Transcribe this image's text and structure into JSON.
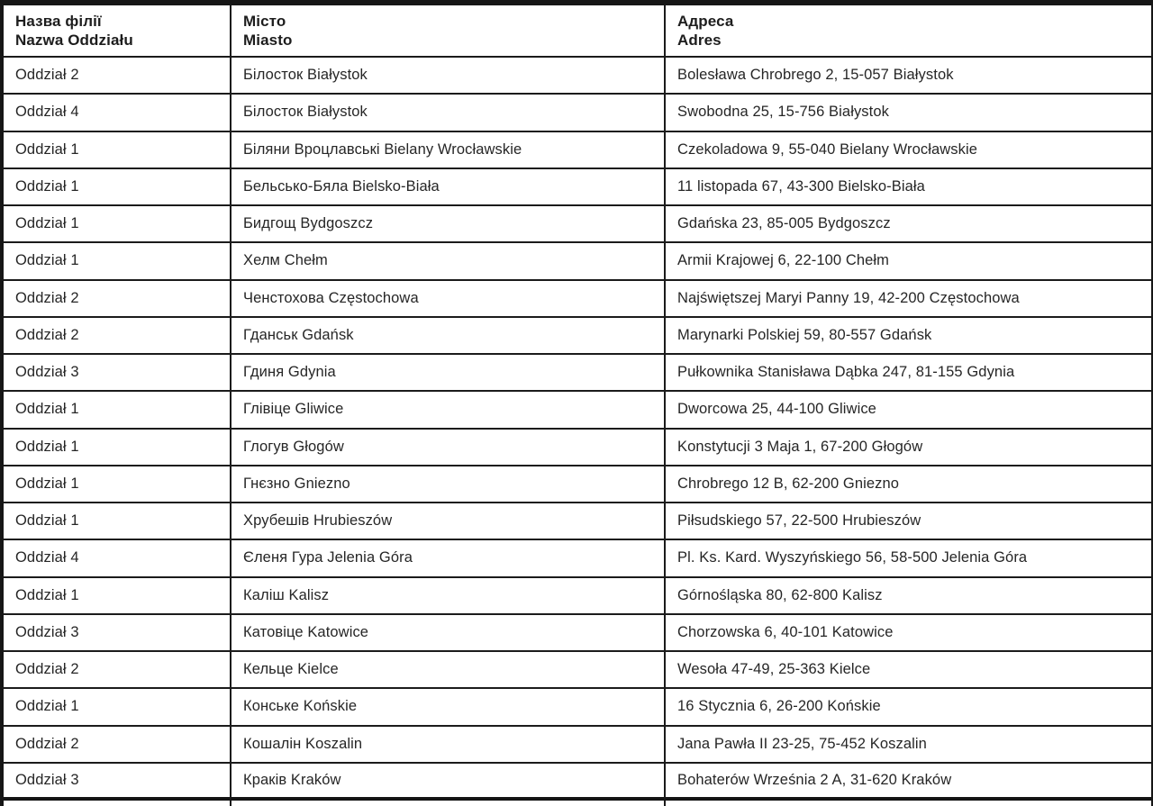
{
  "table": {
    "columns": [
      {
        "label_uk": "Назва філії",
        "label_pl": "Nazwa Oddziału"
      },
      {
        "label_uk": "Місто",
        "label_pl": "Miasto"
      },
      {
        "label_uk": "Адреса",
        "label_pl": "Adres"
      }
    ],
    "rows": [
      {
        "branch": "Oddział 2",
        "city": "Білосток Białystok",
        "address": "Bolesława Chrobrego 2, 15-057 Białystok"
      },
      {
        "branch": "Oddział 4",
        "city": "Білосток Białystok",
        "address": "Swobodna 25, 15-756 Białystok"
      },
      {
        "branch": "Oddział 1",
        "city": "Біляни Вроцлавські Bielany Wrocławskie",
        "address": "Czekoladowa 9, 55-040 Bielany Wrocławskie"
      },
      {
        "branch": "Oddział 1",
        "city": "Бельсько-Бяла Bielsko-Biała",
        "address": "11 listopada 67, 43-300 Bielsko-Biała"
      },
      {
        "branch": "Oddział 1",
        "city": "Бидгощ Bydgoszcz",
        "address": "Gdańska 23, 85-005 Bydgoszcz"
      },
      {
        "branch": "Oddział 1",
        "city": "Хелм Chełm",
        "address": "Armii Krajowej 6, 22-100 Chełm"
      },
      {
        "branch": "Oddział 2",
        "city": "Ченстохова Częstochowa",
        "address": "Najświętszej Maryi Panny 19, 42-200 Częstochowa"
      },
      {
        "branch": "Oddział 2",
        "city": "Гданськ Gdańsk",
        "address": "Marynarki Polskiej 59, 80-557 Gdańsk"
      },
      {
        "branch": "Oddział 3",
        "city": "Гдиня Gdynia",
        "address": "Pułkownika Stanisława Dąbka 247, 81-155 Gdynia"
      },
      {
        "branch": "Oddział 1",
        "city": "Глівіце Gliwice",
        "address": "Dworcowa 25, 44-100 Gliwice"
      },
      {
        "branch": "Oddział 1",
        "city": "Глогув Głogów",
        "address": "Konstytucji 3 Maja 1, 67-200 Głogów"
      },
      {
        "branch": "Oddział 1",
        "city": "Гнєзно Gniezno",
        "address": "Chrobrego 12 B, 62-200 Gniezno"
      },
      {
        "branch": "Oddział 1",
        "city": "Хрубешів Hrubieszów",
        "address": "Piłsudskiego 57, 22-500 Hrubieszów"
      },
      {
        "branch": "Oddział 4",
        "city": "Єленя Гура Jelenia Góra",
        "address": "Pl. Ks. Kard. Wyszyńskiego 56, 58-500 Jelenia Góra"
      },
      {
        "branch": "Oddział 1",
        "city": "Каліш Kalisz",
        "address": "Górnośląska 80, 62-800 Kalisz"
      },
      {
        "branch": "Oddział 3",
        "city": "Катовіце Katowice",
        "address": "Chorzowska 6, 40-101 Katowice"
      },
      {
        "branch": "Oddział 2",
        "city": "Кельце Kielce",
        "address": "Wesoła 47-49, 25-363 Kielce"
      },
      {
        "branch": "Oddział 1",
        "city": "Конське Końskie",
        "address": "16 Stycznia 6, 26-200 Końskie"
      },
      {
        "branch": "Oddział 2",
        "city": "Кошалін Koszalin",
        "address": "Jana Pawła II 23-25, 75-452 Koszalin"
      },
      {
        "branch": "Oddział 3",
        "city": "Краків Kraków",
        "address": "Bohaterów Września 2 A, 31-620 Kraków"
      }
    ]
  },
  "colors": {
    "border": "#1b1b1b",
    "text": "#262626",
    "background": "#ffffff"
  }
}
